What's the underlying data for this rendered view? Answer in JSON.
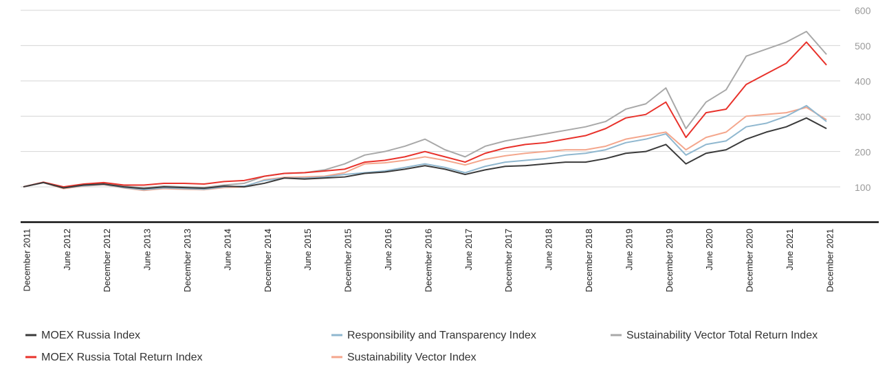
{
  "chart_data": {
    "type": "line",
    "categories": [
      "December 2011",
      null,
      "June 2012",
      null,
      "December 2012",
      null,
      "June 2013",
      null,
      "December 2013",
      null,
      "June 2014",
      null,
      "December 2014",
      null,
      "June 2015",
      null,
      "December 2015",
      null,
      "June 2016",
      null,
      "December 2016",
      null,
      "June 2017",
      null,
      "December 2017",
      null,
      "June 2018",
      null,
      "December 2018",
      null,
      "June 2019",
      null,
      "December 2019",
      null,
      "June 2020",
      null,
      "December 2020",
      null,
      "June 2021",
      null,
      "December 2021"
    ],
    "series": [
      {
        "name": "MOEX Russia Index",
        "color": "#3a3a3a",
        "values": [
          100,
          112,
          97,
          105,
          108,
          100,
          95,
          100,
          98,
          96,
          102,
          100,
          110,
          125,
          122,
          125,
          128,
          138,
          142,
          150,
          160,
          150,
          135,
          148,
          158,
          160,
          165,
          170,
          170,
          180,
          195,
          200,
          220,
          165,
          195,
          205,
          235,
          255,
          270,
          295,
          265
        ]
      },
      {
        "name": "MOEX Russia Total Return Index",
        "color": "#e8312a",
        "values": [
          100,
          113,
          100,
          108,
          112,
          105,
          105,
          110,
          110,
          108,
          115,
          118,
          130,
          138,
          140,
          145,
          150,
          170,
          175,
          185,
          200,
          185,
          170,
          195,
          210,
          220,
          225,
          235,
          245,
          265,
          295,
          305,
          340,
          240,
          310,
          320,
          390,
          420,
          450,
          510,
          445
        ]
      },
      {
        "name": "Responsibility and Transparency Index",
        "color": "#8fb7cf",
        "values": [
          100,
          112,
          97,
          103,
          107,
          98,
          92,
          97,
          95,
          93,
          100,
          102,
          118,
          125,
          125,
          128,
          135,
          140,
          145,
          155,
          165,
          155,
          140,
          158,
          170,
          175,
          180,
          190,
          195,
          205,
          225,
          235,
          250,
          190,
          220,
          230,
          270,
          280,
          300,
          330,
          285
        ]
      },
      {
        "name": "Sustainability Vector Index",
        "color": "#f4a68c",
        "values": [
          100,
          112,
          95,
          102,
          106,
          97,
          90,
          95,
          93,
          92,
          98,
          100,
          120,
          127,
          128,
          130,
          140,
          165,
          168,
          175,
          185,
          175,
          162,
          178,
          188,
          195,
          200,
          205,
          205,
          215,
          235,
          245,
          255,
          205,
          240,
          255,
          300,
          305,
          310,
          325,
          290
        ]
      },
      {
        "name": "Sustainability Vector Total Return Index",
        "color": "#a8a8a8",
        "values": [
          100,
          113,
          98,
          105,
          110,
          102,
          97,
          102,
          100,
          98,
          105,
          110,
          130,
          138,
          140,
          148,
          165,
          190,
          200,
          215,
          235,
          205,
          185,
          215,
          230,
          240,
          250,
          260,
          270,
          285,
          320,
          335,
          380,
          265,
          340,
          375,
          470,
          490,
          510,
          540,
          475
        ]
      }
    ],
    "ylim": [
      0,
      600
    ],
    "yticks": [
      100,
      200,
      300,
      400,
      500,
      600
    ],
    "grid": true
  }
}
